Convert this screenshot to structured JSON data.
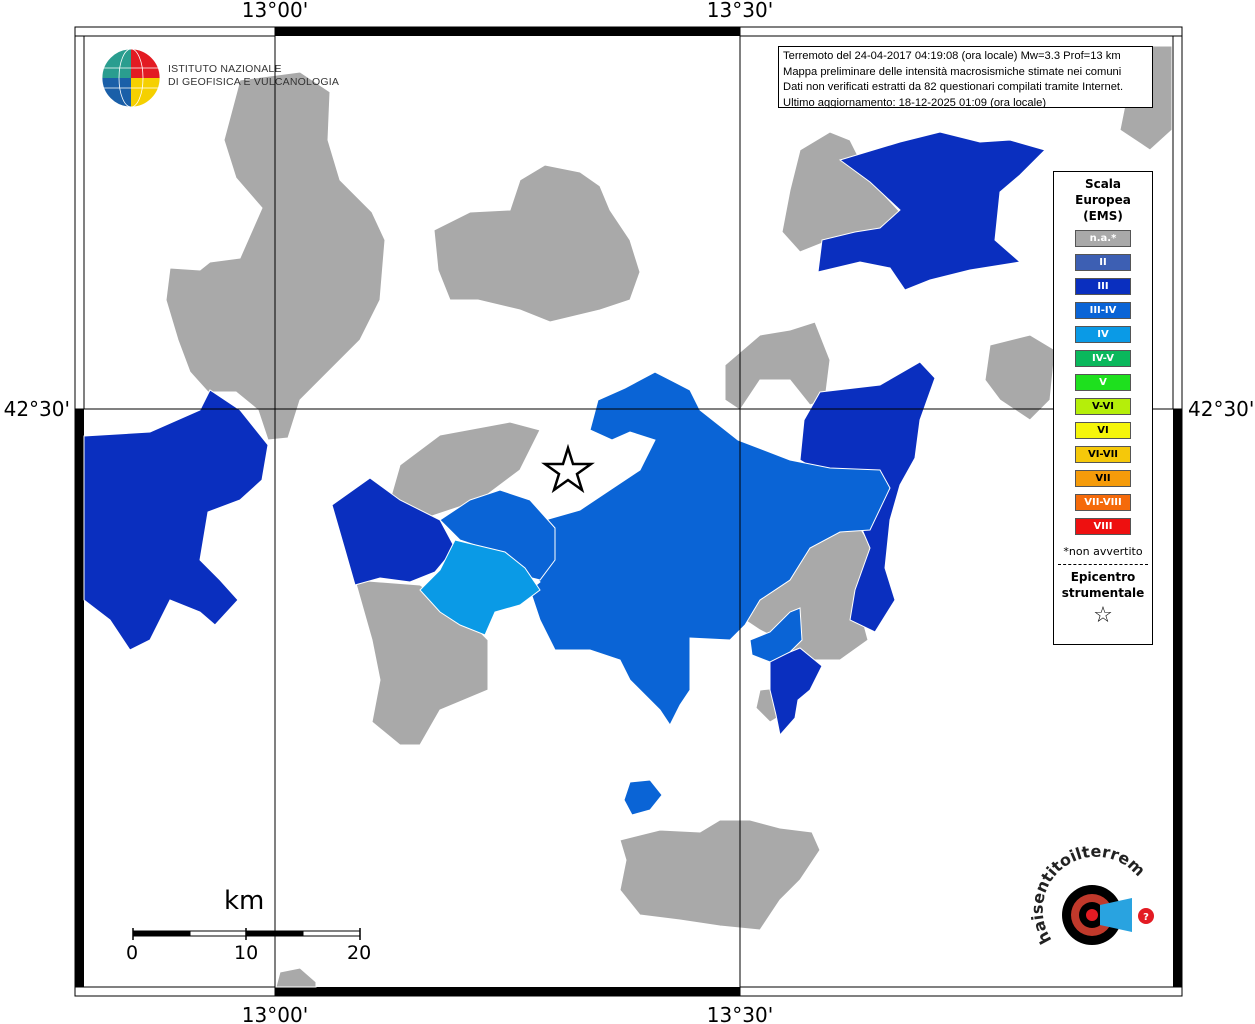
{
  "map": {
    "coords": {
      "top_left": "13°00'",
      "top_right": "13°30'",
      "bottom_left": "13°00'",
      "bottom_right": "13°30'",
      "left": "42°30'",
      "right": "42°30'"
    },
    "info_lines": [
      "Terremoto del 24-04-2017 04:19:08 (ora locale) Mw=3.3 Prof=13 km",
      "Mappa preliminare delle intensità macrosismiche stimate nei comuni",
      "Dati non verificati estratti da 82 questionari compilati tramite Internet.",
      "Ultimo aggiornamento: 18-12-2025 01:09 (ora locale)"
    ],
    "institute": {
      "line1": "ISTITUTO NAZIONALE",
      "line2": "DI GEOFISICA E VULCANOLOGIA"
    },
    "legend": {
      "title_line1": "Scala",
      "title_line2": "Europea",
      "title_line3": "(EMS)",
      "items": [
        {
          "label": "n.a.*",
          "color": "#a9a9a9"
        },
        {
          "label": "II",
          "color": "#3d5fb3"
        },
        {
          "label": "III",
          "color": "#0a2fbf"
        },
        {
          "label": "III-IV",
          "color": "#0a64d6"
        },
        {
          "label": "IV",
          "color": "#0a9ae6"
        },
        {
          "label": "IV-V",
          "color": "#0ab85c"
        },
        {
          "label": "V",
          "color": "#1ee01e"
        },
        {
          "label": "V-VI",
          "color": "#b5ee0a"
        },
        {
          "label": "VI",
          "color": "#f5f50a"
        },
        {
          "label": "VI-VII",
          "color": "#f5c80a"
        },
        {
          "label": "VII",
          "color": "#f59b0a"
        },
        {
          "label": "VII-VIII",
          "color": "#f56a0a"
        },
        {
          "label": "VIII",
          "color": "#ee1010"
        }
      ],
      "note": "*non avvertito",
      "epicenter_line1": "Epicentro",
      "epicenter_line2": "strumentale",
      "star": "☆"
    },
    "scale_bar": {
      "unit": "km",
      "ticks": [
        "0",
        "10",
        "20"
      ]
    },
    "site_logo_text": "haisentitoilterremoto.it"
  }
}
